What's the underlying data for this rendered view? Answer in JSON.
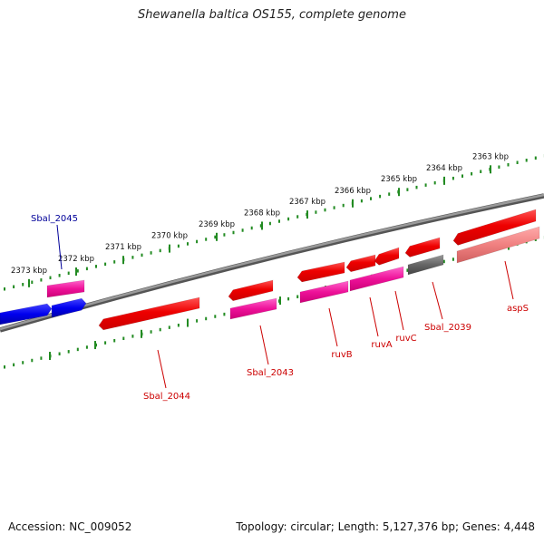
{
  "title": "Shewanella baltica OS155, complete genome",
  "footer": {
    "accession": "Accession: NC_009052",
    "stats": "Topology: circular; Length: 5,127,376 bp; Genes: 4,448"
  },
  "colors": {
    "backbone": "#808080",
    "tick": "#228B22",
    "forward_gene": "#0000ee",
    "forward_rna": "#ee1199",
    "reverse_gene": "#ee0000",
    "reverse_rna": "#ee1199",
    "pseudogene": "#666666",
    "label_forward": "#000099",
    "label_reverse": "#cc0000"
  },
  "scale": {
    "unit": "kbp",
    "labels": [
      "2373 kbp",
      "2372 kbp",
      "2371 kbp",
      "2370 kbp",
      "2369 kbp",
      "2368 kbp",
      "2367 kbp",
      "2366 kbp",
      "2365 kbp",
      "2364 kbp",
      "2363 kbp"
    ]
  },
  "genes": [
    {
      "label": "Sbal_2045",
      "strand": "forward",
      "label_color": "#000099"
    },
    {
      "label": "Sbal_2044",
      "strand": "reverse",
      "label_color": "#cc0000"
    },
    {
      "label": "Sbal_2043",
      "strand": "reverse",
      "label_color": "#cc0000"
    },
    {
      "label": "ruvB",
      "strand": "reverse",
      "label_color": "#cc0000"
    },
    {
      "label": "ruvA",
      "strand": "reverse",
      "label_color": "#cc0000"
    },
    {
      "label": "ruvC",
      "strand": "reverse",
      "label_color": "#cc0000"
    },
    {
      "label": "Sbal_2039",
      "strand": "reverse",
      "label_color": "#cc0000"
    },
    {
      "label": "aspS",
      "strand": "reverse",
      "label_color": "#cc0000"
    }
  ]
}
